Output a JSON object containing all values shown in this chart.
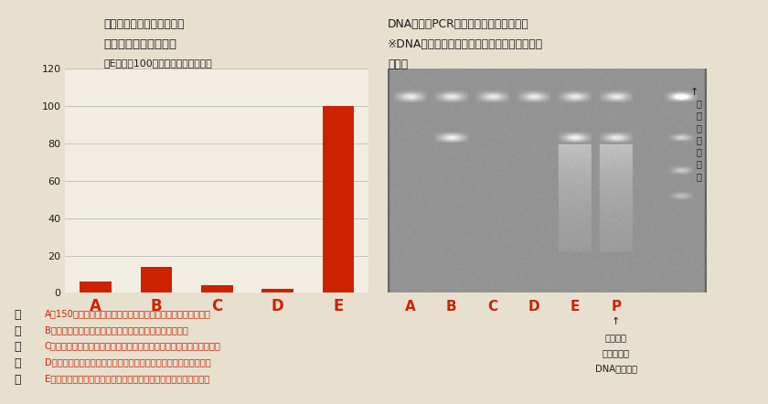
{
  "title_line1": "乾燥重量あたりで換算した",
  "title_line2": "バチルス属細菌存在量",
  "title_line3": "（Eの値を100とした相対比で示す）",
  "categories": [
    "A",
    "B",
    "C",
    "D",
    "E"
  ],
  "values": [
    6,
    14,
    4,
    2,
    100
  ],
  "bar_color": "#cc2200",
  "ylim": [
    0,
    120
  ],
  "yticks": [
    0,
    20,
    40,
    60,
    80,
    100,
    120
  ],
  "background_color": "#e8e0cf",
  "plot_bg_color": "#f2ede3",
  "right_title_line1": "DNA分析（PCR法）の結果（電気泳動）",
  "right_title_line2": "※DNAのバンドが光るほどバチルス菌が多く存",
  "right_title_line3": "在する",
  "gel_labels": [
    "A",
    "B",
    "C",
    "D",
    "E",
    "P"
  ],
  "legend_title": "試料の内容",
  "legend_A": "A：150年以上前から腐らせてある京都の中塗り土（長期発酵）",
  "legend_B": "B：ふだん勇建工業で施工している中塗り土（発酵済み）",
  "legend_C": "C：ふだん勇建工業で使っている中塗り土の原料の粘土土（混練り前）",
  "legend_D": "D：ふだん勇建工業で使っている中塗り土の原料の砂（混練り前）",
  "legend_E": "E：ふだん勇建工業で使っている中塗り土の原料の藁（混練り前）",
  "red_color": "#cc2200",
  "text_color": "#1a1a1a",
  "grid_color": "#bbbbbb"
}
